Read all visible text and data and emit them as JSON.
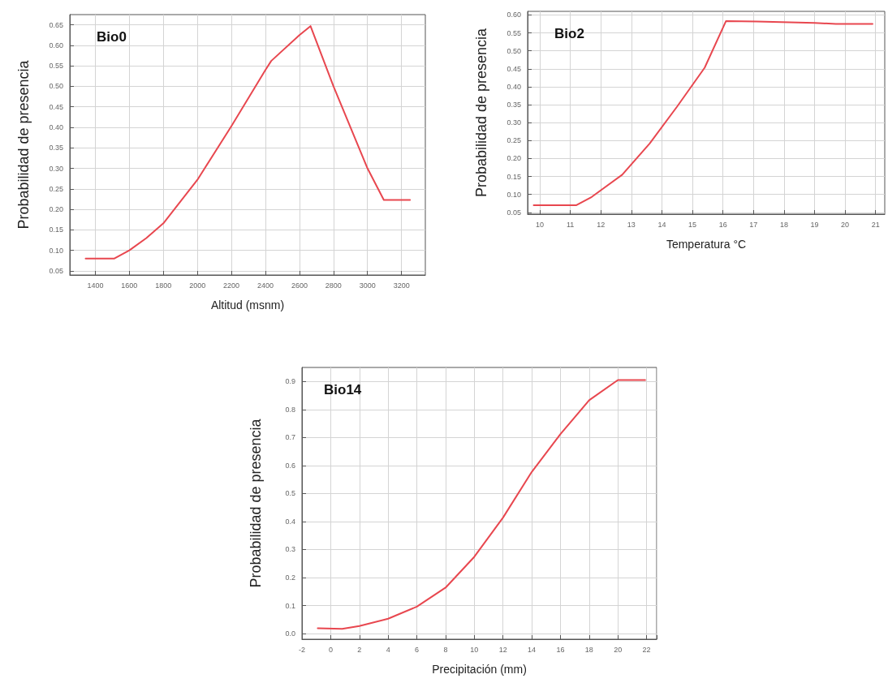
{
  "chart_data": [
    {
      "type": "line",
      "title": "Bio0",
      "xlabel": "Altitud (msnm)",
      "ylabel": "Probabilidad de presencia",
      "grid": true,
      "marker": "none",
      "line_style": "solid",
      "xlim": [
        1250,
        3340
      ],
      "xticks": [
        1400,
        1600,
        1800,
        2000,
        2200,
        2400,
        2600,
        2800,
        3000,
        3200
      ],
      "ylim": [
        0.04,
        0.675
      ],
      "yticks": [
        {
          "value": 0.05,
          "label": "0.05"
        },
        {
          "value": 0.1,
          "label": "0.10"
        },
        {
          "value": 0.15,
          "label": "0.15"
        },
        {
          "value": 0.2,
          "label": "0.20"
        },
        {
          "value": 0.25,
          "label": "0.25"
        },
        {
          "value": 0.3,
          "label": "0.30"
        },
        {
          "value": 0.35,
          "label": "0.35"
        },
        {
          "value": 0.4,
          "label": "0.40"
        },
        {
          "value": 0.45,
          "label": "0.45"
        },
        {
          "value": 0.5,
          "label": "0.50"
        },
        {
          "value": 0.55,
          "label": "0.55"
        },
        {
          "value": 0.6,
          "label": "0.60"
        },
        {
          "value": 0.65,
          "label": "0.65"
        }
      ],
      "series": [
        {
          "color": "#e8474f",
          "x": [
            1343,
            1510,
            1600,
            1700,
            1800,
            2000,
            2200,
            2400,
            2434,
            2600,
            2665,
            2800,
            3000,
            3096,
            3250
          ],
          "values": [
            0.08,
            0.08,
            0.1,
            0.13,
            0.166,
            0.272,
            0.403,
            0.54,
            0.562,
            0.625,
            0.647,
            0.5,
            0.3,
            0.223,
            0.223
          ]
        }
      ]
    },
    {
      "type": "line",
      "title": "Bio2",
      "xlabel": "Temperatura °C",
      "ylabel": "Probabilidad de presencia",
      "grid": true,
      "marker": "none",
      "line_style": "solid",
      "xlim": [
        9.6,
        21.3
      ],
      "xticks": [
        10,
        11,
        12,
        13,
        14,
        15,
        16,
        17,
        18,
        19,
        20,
        21
      ],
      "ylim": [
        0.045,
        0.61
      ],
      "yticks": [
        {
          "value": 0.05,
          "label": "0.05"
        },
        {
          "value": 0.1,
          "label": "0.10"
        },
        {
          "value": 0.15,
          "label": "0.15"
        },
        {
          "value": 0.2,
          "label": "0.20"
        },
        {
          "value": 0.25,
          "label": "0.25"
        },
        {
          "value": 0.3,
          "label": "0.30"
        },
        {
          "value": 0.35,
          "label": "0.35"
        },
        {
          "value": 0.4,
          "label": "0.40"
        },
        {
          "value": 0.45,
          "label": "0.45"
        },
        {
          "value": 0.5,
          "label": "0.50"
        },
        {
          "value": 0.55,
          "label": "0.55"
        },
        {
          "value": 0.6,
          "label": "0.60"
        }
      ],
      "series": [
        {
          "color": "#e8474f",
          "x": [
            9.8,
            11.2,
            11.7,
            12.7,
            13.6,
            14.5,
            15.4,
            16.1,
            17.1,
            19,
            19.7,
            20.9
          ],
          "values": [
            0.07,
            0.07,
            0.093,
            0.155,
            0.242,
            0.345,
            0.453,
            0.583,
            0.582,
            0.578,
            0.575,
            0.575
          ]
        }
      ]
    },
    {
      "type": "line",
      "title": "Bio14",
      "xlabel": "Precipitación (mm)",
      "ylabel": "Probabilidad de presencia",
      "grid": true,
      "marker": "none",
      "line_style": "solid",
      "xlim": [
        -2,
        22.7
      ],
      "xticks": [
        -2,
        0,
        2,
        4,
        6,
        8,
        10,
        12,
        14,
        16,
        18,
        20,
        22
      ],
      "ylim": [
        -0.02,
        0.95
      ],
      "yticks": [
        {
          "value": 0,
          "label": "0.0"
        },
        0.1,
        0.2,
        0.3,
        0.4,
        0.5,
        0.6,
        0.7,
        0.8,
        0.9
      ],
      "series": [
        {
          "color": "#e8474f",
          "x": [
            -0.9,
            0.8,
            2,
            4,
            6,
            8,
            10,
            12,
            14,
            16,
            18,
            20,
            21.9
          ],
          "values": [
            0.019,
            0.017,
            0.027,
            0.053,
            0.096,
            0.164,
            0.274,
            0.414,
            0.577,
            0.712,
            0.833,
            0.905,
            0.905
          ]
        }
      ]
    }
  ]
}
